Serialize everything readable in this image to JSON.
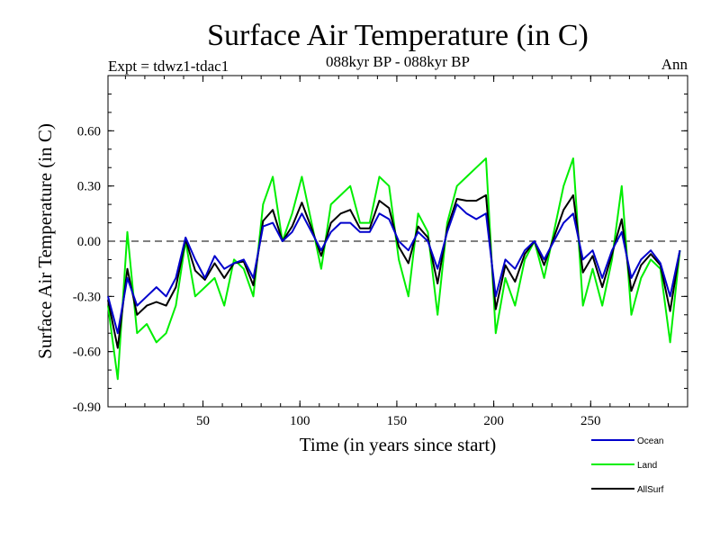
{
  "chart_data": {
    "type": "line",
    "title": "Surface Air Temperature (in C)",
    "subtitle_left": "Expt = tdwz1-tdac1",
    "subtitle_center": "088kyr BP - 088kyr BP",
    "subtitle_right": "Ann",
    "xlabel": "Time (in years since start)",
    "ylabel": "Surface Air Temperature (in C)",
    "xlim": [
      1,
      300
    ],
    "ylim": [
      -0.9,
      0.9
    ],
    "xticks": [
      50,
      100,
      150,
      200,
      250
    ],
    "xtick_labels": [
      "50",
      "100",
      "150",
      "200",
      "250"
    ],
    "yticks": [
      -0.9,
      -0.6,
      -0.3,
      0.0,
      0.3,
      0.6
    ],
    "ytick_labels": [
      "-0.90",
      "-0.60",
      "-0.30",
      "0.00",
      "0.30",
      "0.60"
    ],
    "zero_line": "dashed",
    "legend_position": "below-right",
    "x_step": 5,
    "x_start": 1,
    "series": [
      {
        "name": "Ocean",
        "color": "#0000cc",
        "values": [
          -0.3,
          -0.5,
          -0.2,
          -0.35,
          -0.3,
          -0.25,
          -0.3,
          -0.2,
          0.02,
          -0.1,
          -0.2,
          -0.08,
          -0.15,
          -0.12,
          -0.1,
          -0.2,
          0.08,
          0.1,
          0.0,
          0.05,
          0.15,
          0.05,
          -0.05,
          0.05,
          0.1,
          0.1,
          0.05,
          0.05,
          0.15,
          0.12,
          0.0,
          -0.05,
          0.05,
          0.0,
          -0.15,
          0.05,
          0.2,
          0.15,
          0.12,
          0.15,
          -0.3,
          -0.1,
          -0.15,
          -0.05,
          0.0,
          -0.1,
          0.0,
          0.1,
          0.15,
          -0.1,
          -0.05,
          -0.2,
          -0.05,
          0.05,
          -0.2,
          -0.1,
          -0.05,
          -0.12,
          -0.3,
          -0.05
        ]
      },
      {
        "name": "Land",
        "color": "#00ee00",
        "values": [
          -0.35,
          -0.75,
          0.05,
          -0.5,
          -0.45,
          -0.55,
          -0.5,
          -0.35,
          0.0,
          -0.3,
          -0.25,
          -0.2,
          -0.35,
          -0.1,
          -0.15,
          -0.3,
          0.2,
          0.35,
          0.0,
          0.15,
          0.35,
          0.1,
          -0.15,
          0.2,
          0.25,
          0.3,
          0.1,
          0.1,
          0.35,
          0.3,
          -0.1,
          -0.3,
          0.15,
          0.05,
          -0.4,
          0.1,
          0.3,
          0.35,
          0.4,
          0.45,
          -0.5,
          -0.2,
          -0.35,
          -0.1,
          0.0,
          -0.2,
          0.05,
          0.3,
          0.45,
          -0.35,
          -0.15,
          -0.35,
          -0.1,
          0.3,
          -0.4,
          -0.2,
          -0.1,
          -0.15,
          -0.55,
          -0.05
        ]
      },
      {
        "name": "AllSurf",
        "color": "#000000",
        "values": [
          -0.32,
          -0.58,
          -0.15,
          -0.4,
          -0.35,
          -0.33,
          -0.35,
          -0.25,
          0.01,
          -0.16,
          -0.21,
          -0.12,
          -0.2,
          -0.12,
          -0.11,
          -0.24,
          0.11,
          0.17,
          0.0,
          0.08,
          0.21,
          0.07,
          -0.08,
          0.1,
          0.15,
          0.17,
          0.07,
          0.07,
          0.22,
          0.18,
          -0.03,
          -0.12,
          0.08,
          0.02,
          -0.23,
          0.07,
          0.23,
          0.22,
          0.22,
          0.25,
          -0.37,
          -0.13,
          -0.22,
          -0.07,
          0.0,
          -0.13,
          0.02,
          0.17,
          0.25,
          -0.17,
          -0.08,
          -0.25,
          -0.07,
          0.12,
          -0.27,
          -0.13,
          -0.07,
          -0.13,
          -0.38,
          -0.05
        ]
      }
    ]
  }
}
